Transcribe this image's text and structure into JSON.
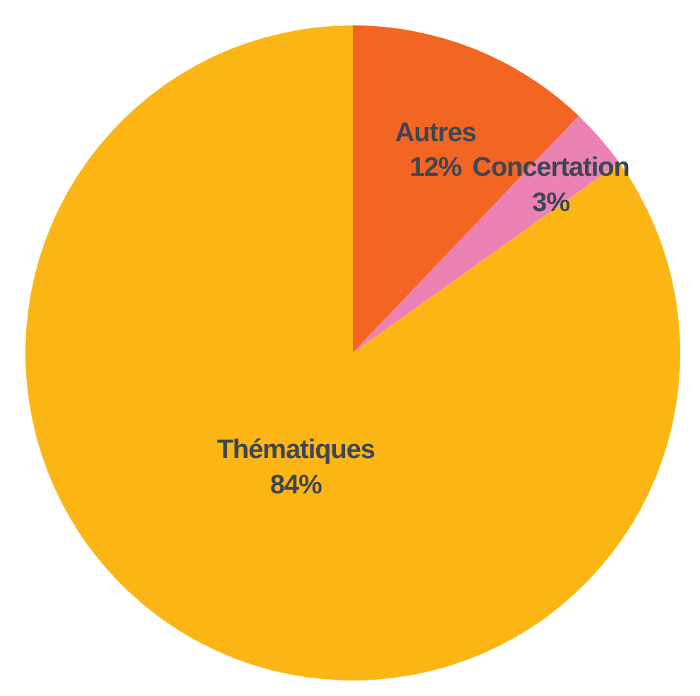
{
  "chart_data": {
    "type": "pie",
    "categories": [
      "Autres",
      "Concertation",
      "Thématiques"
    ],
    "values": [
      12,
      3,
      84
    ],
    "colors": [
      "#f26522",
      "#ec82b4",
      "#fbb615"
    ],
    "value_labels": [
      "12%",
      "3%",
      "84%"
    ]
  }
}
